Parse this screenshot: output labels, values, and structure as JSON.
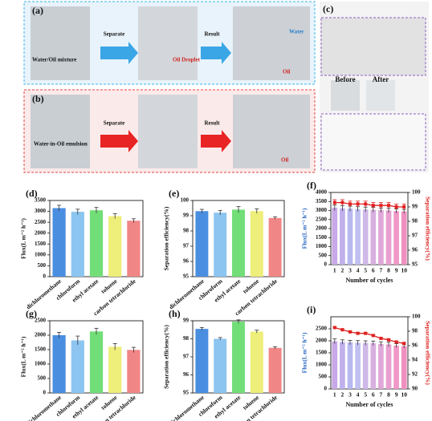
{
  "photos": {
    "a": {
      "label": "(a)",
      "separate": "Separate",
      "result": "Result",
      "water": "Water",
      "mixture": "Water/Oil mixture",
      "droplet": "Oil Droplet",
      "oil": "Oil"
    },
    "b": {
      "label": "(b)",
      "emulsion": "Water-in-Oil emulsion",
      "separate": "Separate",
      "result": "Result",
      "oil": "Oil"
    },
    "c": {
      "label": "(c)",
      "before": "Before",
      "after": "After"
    }
  },
  "chart_data": [
    {
      "type": "bar",
      "label": "(d)",
      "ylabel": "Flux(L m⁻² h⁻¹)",
      "categories": [
        "dichloromethane",
        "chloroform",
        "ethyl acetate",
        "toluene",
        "carbon tetrachloride"
      ],
      "values": [
        3150,
        2980,
        3050,
        2780,
        2570
      ],
      "errors": [
        130,
        120,
        130,
        110,
        90
      ],
      "colors": [
        "#4a8ee0",
        "#8cc6f0",
        "#72de78",
        "#eeee7a",
        "#f08686"
      ],
      "ylim": [
        0,
        3500
      ],
      "yticks": [
        0,
        500,
        1000,
        1500,
        2000,
        2500,
        3000,
        3500
      ]
    },
    {
      "type": "bar",
      "label": "(e)",
      "ylabel": "Separation efficiency(%)",
      "categories": [
        "dichloromethane",
        "chloroform",
        "ethyl acetate",
        "toluene",
        "carbon tetrachloride"
      ],
      "values": [
        99.3,
        99.2,
        99.4,
        99.3,
        98.85
      ],
      "errors": [
        0.12,
        0.15,
        0.2,
        0.15,
        0.08
      ],
      "colors": [
        "#4a8ee0",
        "#8cc6f0",
        "#72de78",
        "#eeee7a",
        "#f08686"
      ],
      "ylim": [
        95,
        100
      ],
      "yticks": [
        95,
        96,
        97,
        98,
        99,
        100
      ]
    },
    {
      "type": "combo",
      "label": "(f)",
      "ylabel": "Flux(L m⁻² h⁻¹)",
      "y2label": "Separation efficiency(%)",
      "xlabel": "Number of cycles",
      "categories": [
        "1",
        "2",
        "3",
        "4",
        "5",
        "6",
        "7",
        "8",
        "9",
        "10"
      ],
      "series": [
        {
          "values": [
            3150,
            3120,
            3100,
            3080,
            3060,
            3040,
            3020,
            3000,
            2970,
            2950
          ],
          "errors": [
            150,
            140,
            140,
            130,
            130,
            130,
            120,
            120,
            120,
            110
          ],
          "colors": [
            "#c8a8e8",
            "#c0b0ec",
            "#b8b8f0",
            "#c0c0f0",
            "#d0b8e8",
            "#d8b0e0",
            "#e0a8d8",
            "#e8a0d0",
            "#f098c8",
            "#f090c0"
          ]
        },
        {
          "axis": "y2",
          "color": "#e02020",
          "values": [
            99.3,
            99.3,
            99.2,
            99.2,
            99.2,
            99.1,
            99.1,
            99.1,
            99.0,
            99.0
          ],
          "errors": [
            0.2,
            0.2,
            0.2,
            0.2,
            0.2,
            0.2,
            0.2,
            0.2,
            0.2,
            0.2
          ]
        }
      ],
      "ylim": [
        0,
        4000
      ],
      "yticks": [
        0,
        500,
        1000,
        1500,
        2000,
        2500,
        3000,
        3500,
        4000
      ],
      "y2lim": [
        95,
        100
      ],
      "y2ticks": [
        95,
        96,
        97,
        98,
        99,
        100
      ],
      "ylabel_color": "#2060c0",
      "y2label_color": "#e02020"
    },
    {
      "type": "bar",
      "label": "(g)",
      "ylabel": "Flux(L m⁻² h⁻¹)",
      "categories": [
        "dichloromethane",
        "chloroform",
        "ethyl acetate",
        "toluene",
        "carbon tetrachloride"
      ],
      "values": [
        2000,
        1820,
        2130,
        1600,
        1490
      ],
      "errors": [
        100,
        150,
        110,
        110,
        90
      ],
      "colors": [
        "#4a8ee0",
        "#8cc6f0",
        "#72de78",
        "#eeee7a",
        "#f08686"
      ],
      "ylim": [
        0,
        2500
      ],
      "yticks": [
        0,
        500,
        1000,
        1500,
        2000,
        2500
      ]
    },
    {
      "type": "bar",
      "label": "(h)",
      "ylabel": "Separation efficiency(%)",
      "categories": [
        "dichloromethane",
        "chloroform",
        "ethyl acetate",
        "toluene",
        "carbon tetrachloride"
      ],
      "values": [
        98.55,
        98.0,
        98.95,
        98.4,
        97.5
      ],
      "errors": [
        0.08,
        0.07,
        0.1,
        0.08,
        0.06
      ],
      "colors": [
        "#4a8ee0",
        "#8cc6f0",
        "#72de78",
        "#eeee7a",
        "#f08686"
      ],
      "ylim": [
        95,
        99
      ],
      "yticks": [
        95,
        96,
        97,
        98,
        99
      ]
    },
    {
      "type": "combo",
      "label": "(i)",
      "ylabel": "Flux(L m⁻² h⁻¹)",
      "y2label": "Separation efficiency(%)",
      "xlabel": "Number of cycles",
      "categories": [
        "1",
        "2",
        "3",
        "4",
        "5",
        "6",
        "7",
        "8",
        "9",
        "10"
      ],
      "series": [
        {
          "values": [
            1980,
            1950,
            1930,
            1920,
            1910,
            1900,
            1870,
            1850,
            1800,
            1780
          ],
          "errors": [
            100,
            90,
            90,
            90,
            90,
            90,
            90,
            90,
            80,
            80
          ],
          "colors": [
            "#c8a8e8",
            "#c0b0ec",
            "#b8b8f0",
            "#c0c0f0",
            "#d0b8e8",
            "#d8b0e0",
            "#e0a8d8",
            "#e8a0d0",
            "#f098c8",
            "#f090c0"
          ]
        },
        {
          "axis": "y2",
          "color": "#e02020",
          "values": [
            98.5,
            98.2,
            97.9,
            97.7,
            97.7,
            97.4,
            97.0,
            96.8,
            96.5,
            96.3
          ],
          "errors": [
            0.15,
            0.15,
            0.15,
            0.15,
            0.15,
            0.15,
            0.15,
            0.15,
            0.15,
            0.15
          ]
        }
      ],
      "ylim": [
        0,
        3000
      ],
      "yticks": [
        0,
        500,
        1000,
        1500,
        2000,
        2500
      ],
      "y2lim": [
        90,
        100
      ],
      "y2ticks": [
        90,
        92,
        94,
        96,
        98,
        100
      ],
      "ylabel_color": "#2060c0",
      "y2label_color": "#e02020"
    }
  ]
}
